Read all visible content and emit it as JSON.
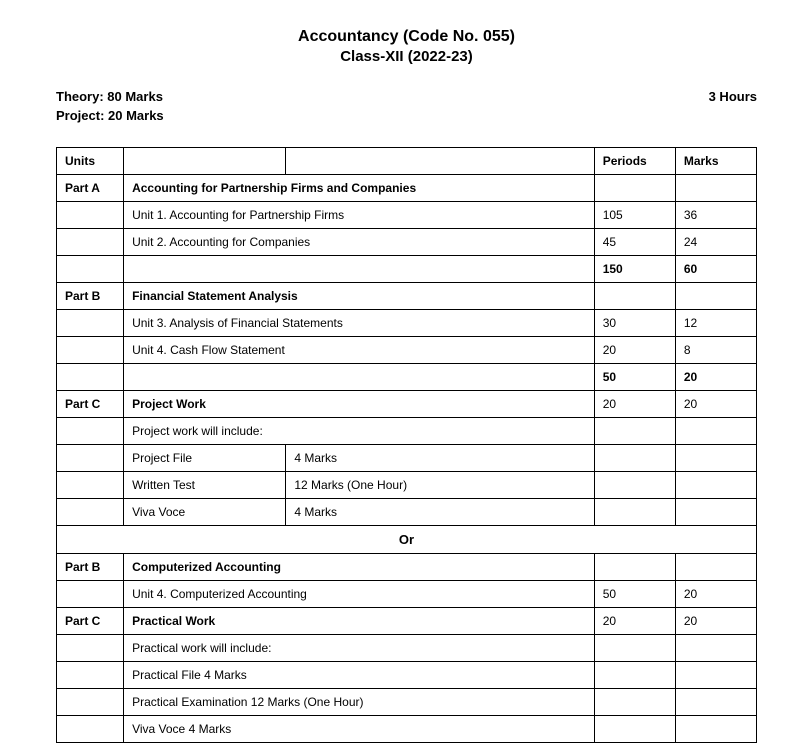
{
  "header": {
    "title": "Accountancy (Code No. 055)",
    "subtitle": "Class-XII (2022-23)"
  },
  "info": {
    "theory": "Theory: 80 Marks",
    "project": "Project: 20 Marks",
    "duration": "3 Hours"
  },
  "table": {
    "headers": {
      "units": "Units",
      "periods": "Periods",
      "marks": "Marks"
    },
    "partA": {
      "label": "Part A",
      "title": "Accounting for Partnership Firms and Companies",
      "unit1": {
        "desc": "Unit 1. Accounting for Partnership Firms",
        "periods": "105",
        "marks": "36"
      },
      "unit2": {
        "desc": "Unit 2. Accounting for Companies",
        "periods": "45",
        "marks": "24"
      },
      "subtotal": {
        "periods": "150",
        "marks": "60"
      }
    },
    "partB": {
      "label": "Part B",
      "title": "Financial Statement Analysis",
      "unit3": {
        "desc": "Unit 3. Analysis of Financial Statements",
        "periods": "30",
        "marks": "12"
      },
      "unit4": {
        "desc": "Unit 4. Cash Flow Statement",
        "periods": "20",
        "marks": "8"
      },
      "subtotal": {
        "periods": "50",
        "marks": "20"
      }
    },
    "partC": {
      "label": "Part C",
      "title": "Project Work",
      "periods": "20",
      "marks": "20",
      "includeText": "Project work will include:",
      "projectFile": {
        "label": "Project File",
        "marks": "4 Marks"
      },
      "writtenTest": {
        "label": "Written Test",
        "marks": "12 Marks (One Hour)"
      },
      "vivaVoce": {
        "label": "Viva Voce",
        "marks": "4 Marks"
      }
    },
    "or": "Or",
    "partB2": {
      "label": "Part B",
      "title": "Computerized Accounting",
      "unit4": {
        "desc": "Unit 4. Computerized Accounting",
        "periods": "50",
        "marks": "20"
      }
    },
    "partC2": {
      "label": "Part C",
      "title": "Practical Work",
      "periods": "20",
      "marks": "20",
      "includeText": "Practical work will include:",
      "practicalFile": "Practical File 4 Marks",
      "practicalExam": "Practical Examination 12 Marks (One Hour)",
      "vivaVoce": "Viva Voce 4 Marks"
    }
  }
}
